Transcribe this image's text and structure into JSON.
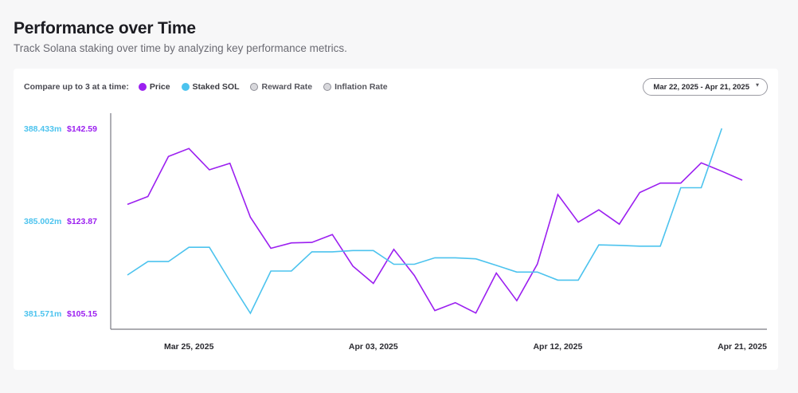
{
  "header": {
    "title": "Performance over Time",
    "subtitle": "Track Solana staking over time by analyzing key performance metrics."
  },
  "controls": {
    "compare_label": "Compare up to 3 at a time:",
    "metrics": [
      {
        "label": "Price",
        "active": true,
        "color": "#9b1ff0"
      },
      {
        "label": "Staked SOL",
        "active": true,
        "color": "#4cc3ee"
      },
      {
        "label": "Reward Rate",
        "active": false
      },
      {
        "label": "Inflation Rate",
        "active": false
      }
    ],
    "date_range": "Mar 22, 2025 - Apr 21, 2025"
  },
  "chart_data": {
    "type": "line",
    "x": [
      "2025-03-22",
      "2025-03-23",
      "2025-03-24",
      "2025-03-25",
      "2025-03-26",
      "2025-03-27",
      "2025-03-28",
      "2025-03-29",
      "2025-03-30",
      "2025-03-31",
      "2025-04-01",
      "2025-04-02",
      "2025-04-03",
      "2025-04-04",
      "2025-04-05",
      "2025-04-06",
      "2025-04-07",
      "2025-04-08",
      "2025-04-09",
      "2025-04-10",
      "2025-04-11",
      "2025-04-12",
      "2025-04-13",
      "2025-04-14",
      "2025-04-15",
      "2025-04-16",
      "2025-04-17",
      "2025-04-18",
      "2025-04-19",
      "2025-04-20",
      "2025-04-21"
    ],
    "x_tick_labels": [
      {
        "date": "2025-03-25",
        "label": "Mar 25, 2025"
      },
      {
        "date": "2025-04-03",
        "label": "Apr 03, 2025"
      },
      {
        "date": "2025-04-12",
        "label": "Apr 12, 2025"
      },
      {
        "date": "2025-04-21",
        "label": "Apr 21, 2025"
      }
    ],
    "series": [
      {
        "name": "Price",
        "color": "#9b1ff0",
        "axis": "price",
        "values": [
          127.2,
          128.8,
          136.9,
          138.5,
          134.2,
          135.5,
          124.6,
          118.3,
          119.4,
          119.5,
          121.1,
          114.7,
          111.2,
          118.1,
          112.8,
          105.7,
          107.3,
          105.2,
          113.3,
          107.7,
          115.1,
          129.2,
          123.6,
          126.1,
          123.2,
          129.6,
          131.5,
          131.5,
          135.6,
          133.9,
          132.1
        ]
      },
      {
        "name": "Staked SOL",
        "color": "#4cc3ee",
        "axis": "staked",
        "values": [
          382.99,
          383.49,
          383.49,
          384.02,
          384.02,
          382.77,
          381.57,
          383.14,
          383.14,
          383.85,
          383.85,
          383.9,
          383.9,
          383.39,
          383.39,
          383.63,
          383.63,
          383.59,
          383.35,
          383.1,
          383.1,
          382.8,
          382.8,
          384.11,
          384.09,
          384.06,
          384.06,
          386.23,
          386.23,
          388.43,
          null
        ]
      }
    ],
    "axes": {
      "price": {
        "ticks": [
          "$142.59",
          "$123.87",
          "$105.15"
        ],
        "range": [
          105.15,
          142.59
        ]
      },
      "staked": {
        "ticks": [
          "388.433m",
          "385.002m",
          "381.571m"
        ],
        "range": [
          381.571,
          388.433
        ]
      }
    },
    "grid": false,
    "legend": "top-left"
  }
}
